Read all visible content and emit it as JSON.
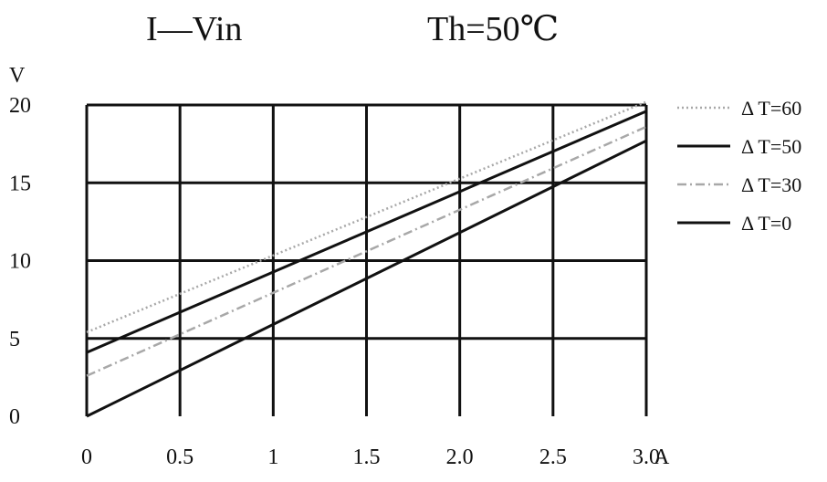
{
  "chart_data": {
    "type": "line",
    "title": "I—Vin",
    "subtitle": "Th=50℃",
    "xlabel": "A",
    "ylabel": "V",
    "xlim": [
      0,
      3.0
    ],
    "ylim": [
      0,
      20
    ],
    "grid": true,
    "legend_position": "right",
    "x_ticks": [
      {
        "value": 0,
        "label": "0"
      },
      {
        "value": 0.5,
        "label": "0.5"
      },
      {
        "value": 1.0,
        "label": "1"
      },
      {
        "value": 1.5,
        "label": "1.5"
      },
      {
        "value": 2.0,
        "label": "2.0"
      },
      {
        "value": 2.5,
        "label": "2.5"
      },
      {
        "value": 3.0,
        "label": "3.0"
      }
    ],
    "y_ticks": [
      {
        "value": 0,
        "label": "0"
      },
      {
        "value": 5,
        "label": "5"
      },
      {
        "value": 10,
        "label": "10"
      },
      {
        "value": 15,
        "label": "15"
      },
      {
        "value": 20,
        "label": "20"
      }
    ],
    "series": [
      {
        "name": "Δ T=60",
        "color": "#a8a8a8",
        "style": "dotted",
        "x": [
          0,
          3.0
        ],
        "y": [
          5.4,
          20.2
        ]
      },
      {
        "name": "Δ T=50",
        "color": "#111111",
        "style": "solid",
        "x": [
          0,
          3.0
        ],
        "y": [
          4.1,
          19.6
        ]
      },
      {
        "name": "Δ T=30",
        "color": "#a8a8a8",
        "style": "dashdot",
        "x": [
          0,
          3.0
        ],
        "y": [
          2.6,
          18.6
        ]
      },
      {
        "name": "Δ T=0",
        "color": "#111111",
        "style": "solid",
        "x": [
          0,
          3.0
        ],
        "y": [
          0,
          17.7
        ]
      }
    ]
  }
}
